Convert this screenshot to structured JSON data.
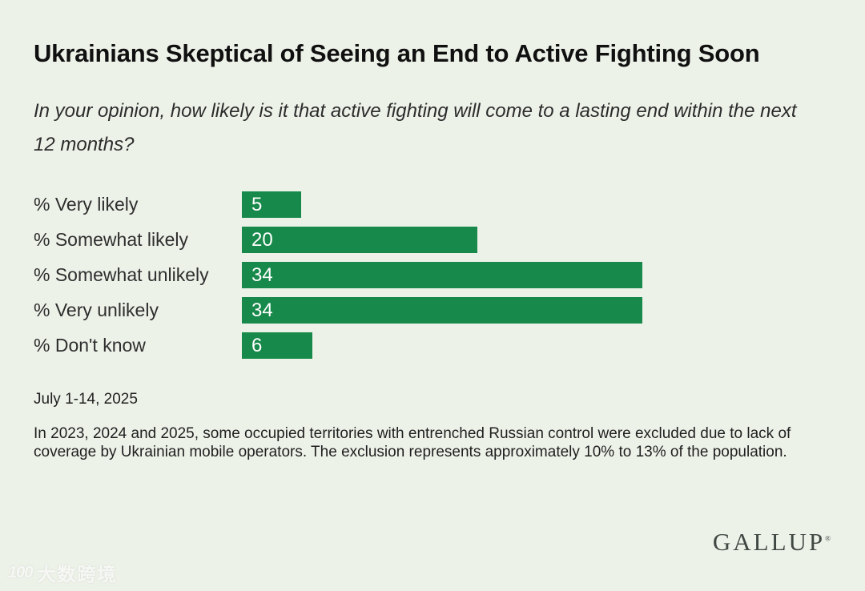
{
  "chart_data": {
    "type": "bar",
    "orientation": "horizontal",
    "title": "Ukrainians Skeptical of Seeing an End to Active Fighting Soon",
    "subtitle": "In your opinion, how likely is it that active fighting will come to a lasting end within the next 12 months?",
    "categories": [
      "% Very likely",
      "% Somewhat likely",
      "% Somewhat unlikely",
      "% Very unlikely",
      "% Don't know"
    ],
    "values": [
      5,
      20,
      34,
      34,
      6
    ],
    "xlim": [
      0,
      34
    ],
    "grid": false,
    "legend": false,
    "bar_color": "#17894a",
    "value_label_color": "#ffffff"
  },
  "footer": {
    "date_range": "July 1-14, 2025",
    "footnote": "In 2023, 2024 and 2025, some occupied territories with entrenched Russian control were excluded due to lack of coverage by Ukrainian mobile operators. The exclusion represents approximately 10% to 13% of the population.",
    "brand": "GALLUP",
    "brand_mark": "®"
  },
  "watermark": {
    "logo": "100",
    "text": "大数跨境"
  },
  "colors": {
    "background": "#edf2e9",
    "bar": "#17894a",
    "title_text": "#101010",
    "body_text": "#2e2e2e"
  }
}
